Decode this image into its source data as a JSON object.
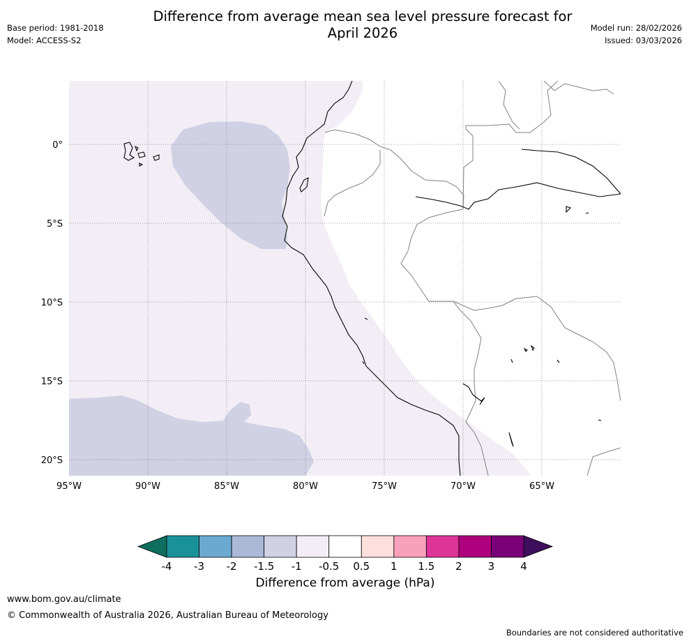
{
  "header": {
    "title_line1": "Difference from average mean sea level pressure forecast for",
    "title_line2": "April 2026",
    "base_period": "Base period: 1981-2018",
    "model": "Model: ACCESS-S2",
    "model_run": "Model run: 28/02/2026",
    "issued": "Issued: 03/03/2026"
  },
  "map": {
    "lat_labels": [
      "0°",
      "5°S",
      "10°S",
      "15°S",
      "20°S"
    ],
    "lon_labels": [
      "95°W",
      "90°W",
      "85°W",
      "80°W",
      "75°W",
      "70°W",
      "65°W"
    ],
    "legend_regions": [
      {
        "range": "-1.5 to -1",
        "color": "#d1d1e5"
      },
      {
        "range": "-1 to -0.5",
        "color": "#f3eef6"
      },
      {
        "range": "-0.5 to 0.5",
        "color": "#ffffff"
      }
    ]
  },
  "colorbar": {
    "title": "Difference from average (hPa)",
    "tick_labels": [
      "-4",
      "-3",
      "-2",
      "-1.5",
      "-1",
      "-0.5",
      "0.5",
      "1",
      "1.5",
      "2",
      "3",
      "4"
    ],
    "under_color": "#0f6e5e",
    "over_color": "#3d0f5c",
    "colors": [
      "#1a9199",
      "#6ba9d1",
      "#a9b9d6",
      "#d1d1e5",
      "#f3eef6",
      "#ffffff",
      "#fde0dd",
      "#f9a0bb",
      "#dd3497",
      "#ae017e",
      "#7a0177"
    ]
  },
  "footer": {
    "url": "www.bom.gov.au/climate",
    "copyright": "© Commonwealth of Australia 2026, Australian Bureau of Meteorology",
    "disclaimer": "Boundaries are not considered authoritative"
  }
}
